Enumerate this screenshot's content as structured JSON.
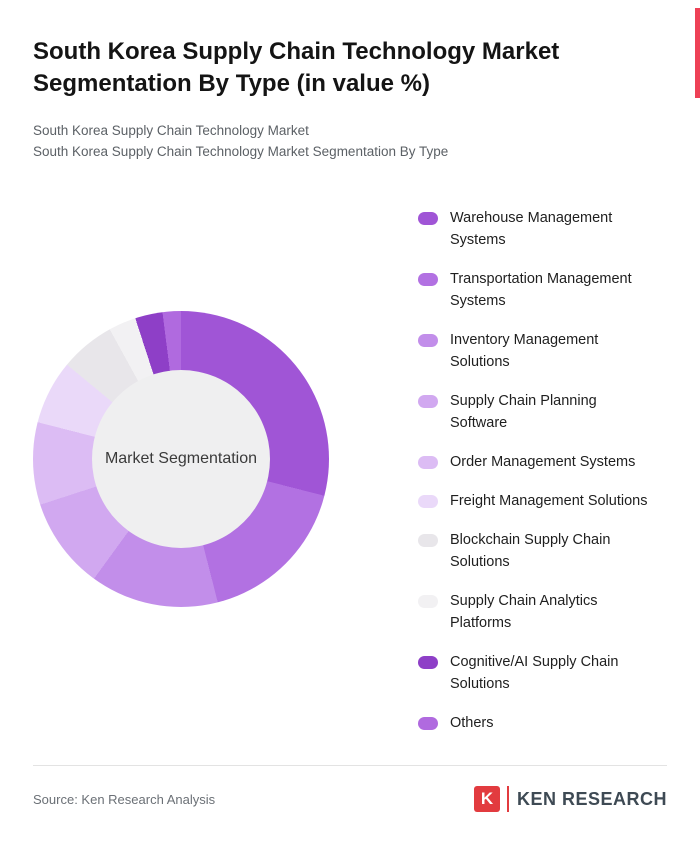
{
  "page": {
    "title": "South Korea Supply Chain Technology Market Segmentation By Type (in value %)",
    "subtitle1": "South Korea Supply Chain Technology Market",
    "subtitle2": "South Korea Supply Chain Technology Market Segmentation By Type"
  },
  "colors": {
    "accent_red": "#ee4156",
    "logo_red": "#e23b3f",
    "donut_hole": "#efeff0"
  },
  "chart_data": {
    "type": "pie",
    "donut": true,
    "title": "South Korea Supply Chain Technology Market Segmentation By Type (in value %)",
    "center_label": "Market Segmentation",
    "legend_position": "right",
    "value_unit": "% of market value",
    "start_angle_deg": 0,
    "direction": "clockwise",
    "items": [
      {
        "label": "Warehouse Management\nSystems",
        "value": 29,
        "color": "#a055d6"
      },
      {
        "label": "Transportation Management\nSystems",
        "value": 17,
        "color": "#b271e2"
      },
      {
        "label": "Inventory Management\nSolutions",
        "value": 14,
        "color": "#c28eea"
      },
      {
        "label": "Supply Chain Planning\nSoftware",
        "value": 10,
        "color": "#d1a8f0"
      },
      {
        "label": "Order Management Systems",
        "value": 9,
        "color": "#dcbcf4"
      },
      {
        "label": "Freight Management Solutions",
        "value": 7,
        "color": "#ead9f9"
      },
      {
        "label": "Blockchain Supply Chain\nSolutions",
        "value": 6,
        "color": "#e8e6ea"
      },
      {
        "label": "Supply Chain Analytics\nPlatforms",
        "value": 3,
        "color": "#f2f1f3"
      },
      {
        "label": "Cognitive/AI Supply Chain\nSolutions",
        "value": 3,
        "color": "#8e3fc7"
      },
      {
        "label": "Others",
        "value": 2,
        "color": "#b06adf"
      }
    ]
  },
  "footer": {
    "source": "Source: Ken Research Analysis",
    "logo_letter": "K",
    "logo_text": "KEN RESEARCH"
  }
}
